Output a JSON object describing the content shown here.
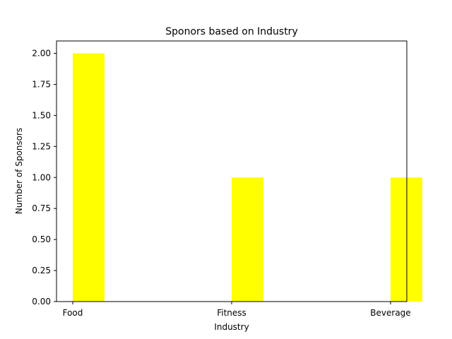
{
  "chart_data": {
    "type": "bar",
    "title": "Sponors based on Industry",
    "xlabel": "Industry",
    "ylabel": "Number of Sponsors",
    "categories": [
      "Food",
      "Fitness",
      "Beverage"
    ],
    "values": [
      2,
      1,
      1
    ],
    "ylim": [
      0,
      2.1
    ],
    "yticks": [
      "0.00",
      "0.25",
      "0.50",
      "0.75",
      "1.00",
      "1.25",
      "1.50",
      "1.75",
      "2.00"
    ],
    "bar_color": "#ffff00",
    "grid": false,
    "legend": false
  }
}
